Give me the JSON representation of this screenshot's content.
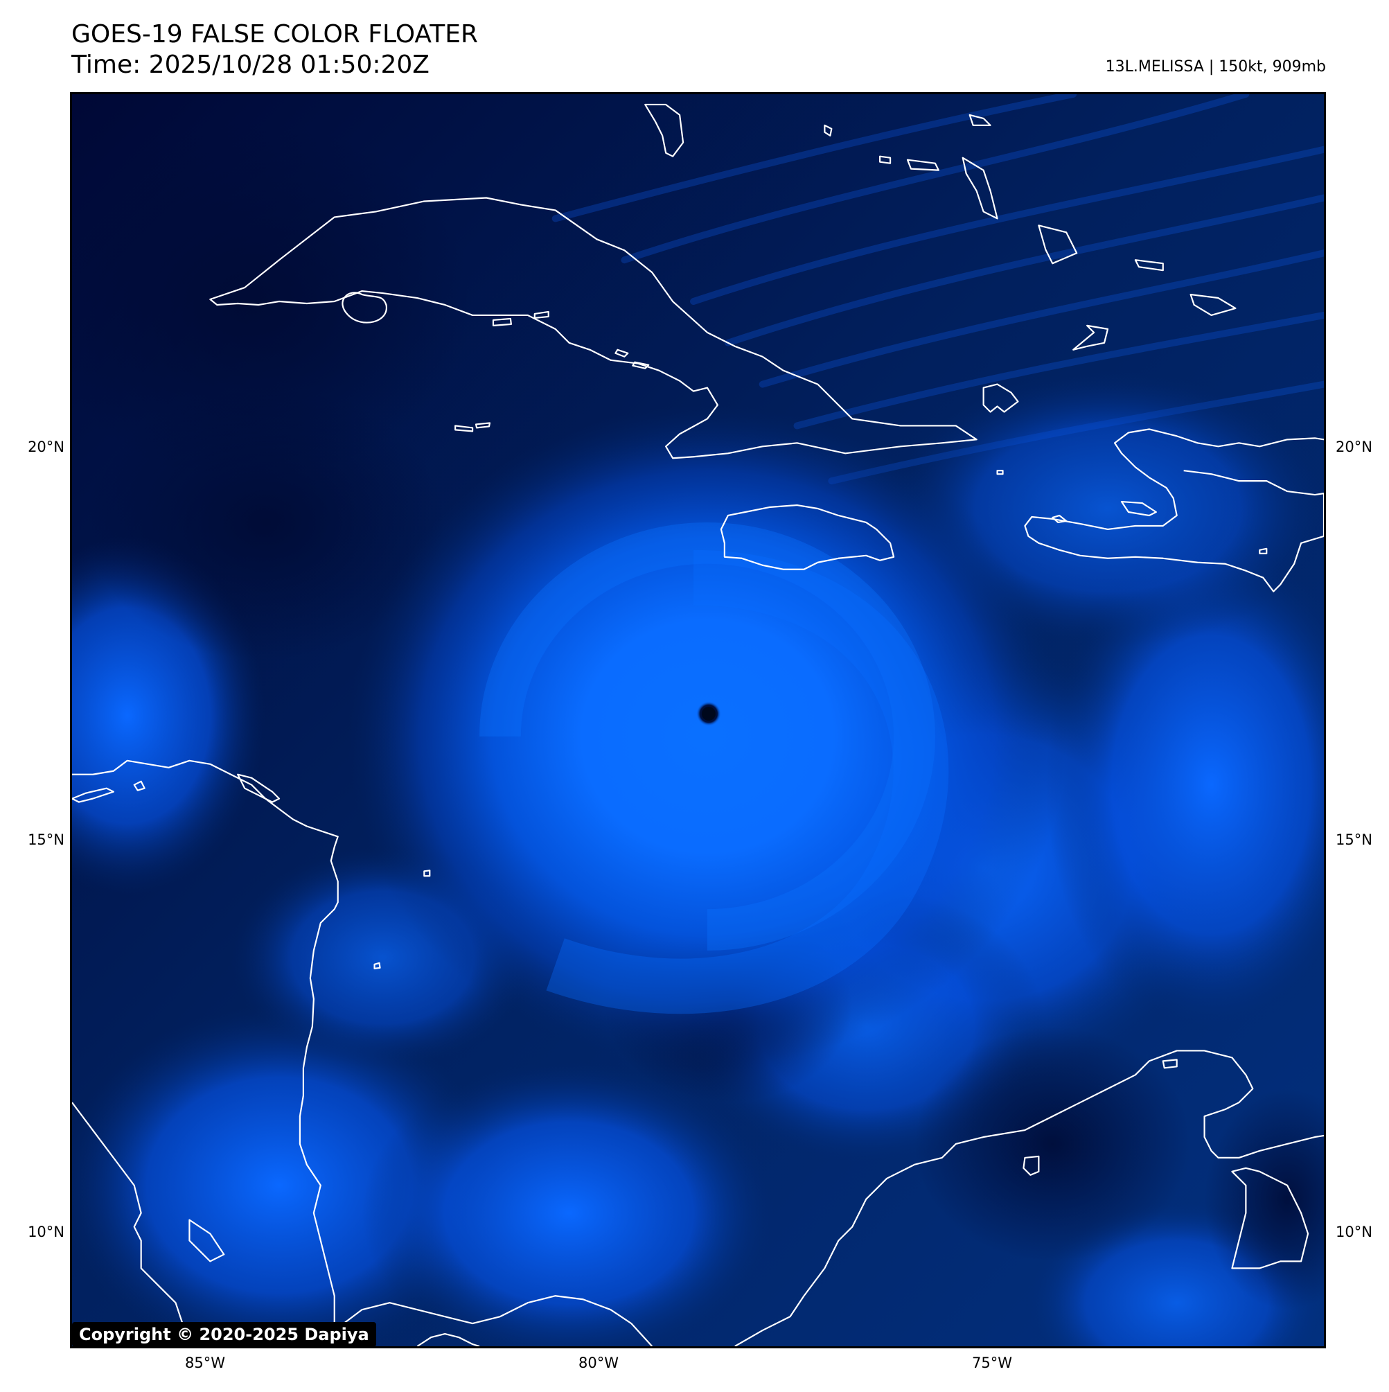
{
  "header": {
    "title_line1": "GOES-19 FALSE COLOR FLOATER",
    "title_line2": "Time: 2025/10/28 01:50:20Z",
    "storm_info": "13L.MELISSA | 150kt, 909mb"
  },
  "map": {
    "lat_labels": [
      "20°N",
      "15°N",
      "10°N"
    ],
    "lon_labels": [
      "85°W",
      "80°W",
      "75°W"
    ],
    "colors": {
      "ocean_dark": "#000a33",
      "cloud_blue": "#0050e0",
      "cloud_bright": "#0a6cff",
      "coastline": "#ffffff",
      "eye": "#00091f"
    },
    "features": [
      "coastlines",
      "hurricane-eye",
      "cloud-field"
    ]
  },
  "copyright": "Copyright © 2020-2025 Dapiya"
}
